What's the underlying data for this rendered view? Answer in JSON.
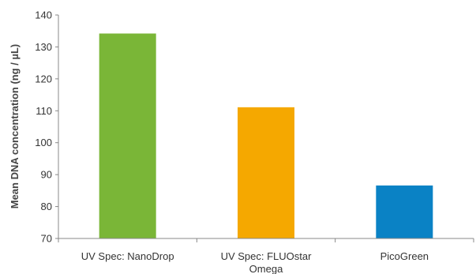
{
  "chart_data": {
    "type": "bar",
    "ylabel": "Mean DNA concentration (ng / µL)",
    "xlabel": "",
    "ylim": [
      70,
      140
    ],
    "yticks": [
      70,
      80,
      90,
      100,
      110,
      120,
      130,
      140
    ],
    "grid": false,
    "categories": [
      [
        "UV Spec: NanoDrop"
      ],
      [
        "UV Spec: FLUOstar",
        "Omega"
      ],
      [
        "PicoGreen"
      ]
    ],
    "values": [
      134.2,
      111.1,
      86.6
    ],
    "colors": [
      "#7ab637",
      "#f5a800",
      "#0a82c5"
    ]
  }
}
